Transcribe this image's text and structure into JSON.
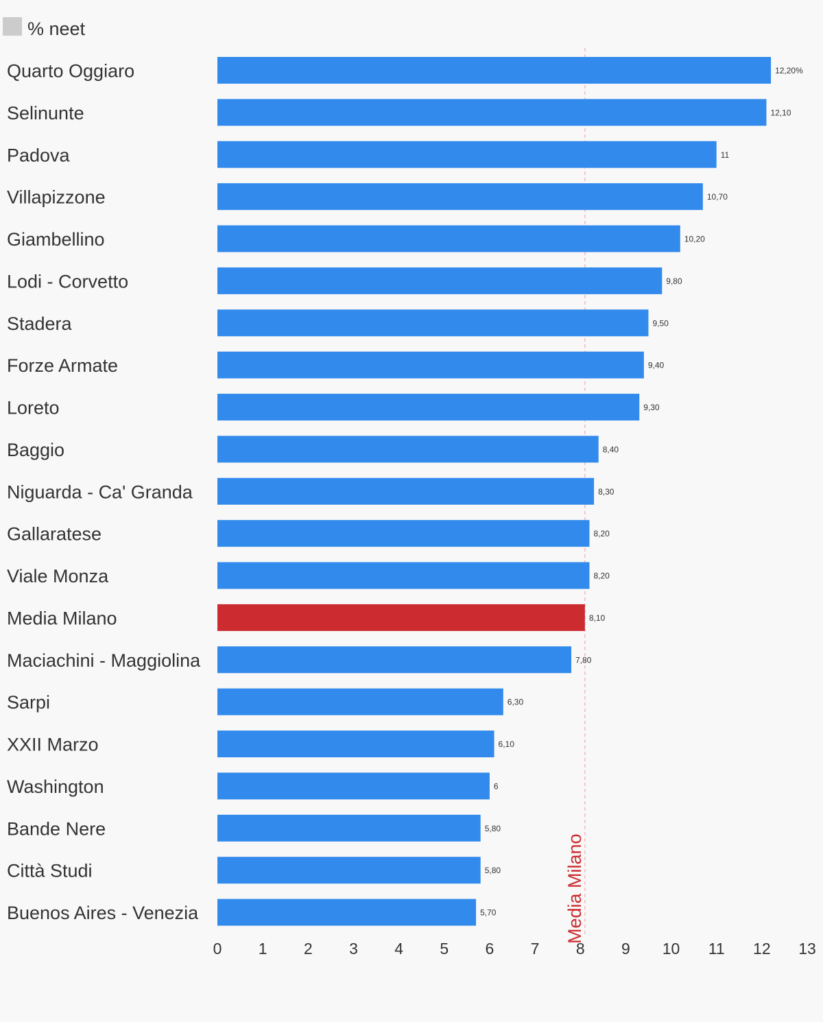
{
  "colors": {
    "bar": "#318aec",
    "highlight": "#cc2b30",
    "reference_line": "#f5b7bd",
    "legend_swatch": "#cccccc",
    "text": "#333333"
  },
  "chart_data": {
    "type": "bar",
    "orientation": "horizontal",
    "legend": {
      "label": "% neet",
      "placement": "top-left"
    },
    "categories": [
      "Quarto Oggiaro",
      "Selinunte",
      "Padova",
      "Villapizzone",
      "Giambellino",
      "Lodi - Corvetto",
      "Stadera",
      "Forze Armate",
      "Loreto",
      "Baggio",
      "Niguarda - Ca' Granda",
      "Gallaratese",
      "Viale Monza",
      "Media Milano",
      "Maciachini - Maggiolina",
      "Sarpi",
      "XXII Marzo",
      "Washington",
      "Bande Nere",
      "Città Studi",
      "Buenos Aires - Venezia"
    ],
    "values": [
      12.2,
      12.1,
      11,
      10.7,
      10.2,
      9.8,
      9.5,
      9.4,
      9.3,
      8.4,
      8.3,
      8.2,
      8.2,
      8.1,
      7.8,
      6.3,
      6.1,
      6,
      5.8,
      5.8,
      5.7
    ],
    "value_labels": [
      "12,20%",
      "12,10",
      "11",
      "10,70",
      "10,20",
      "9,80",
      "9,50",
      "9,40",
      "9,30",
      "8,40",
      "8,30",
      "8,20",
      "8,20",
      "8,10",
      "7,80",
      "6,30",
      "6,10",
      "6",
      "5,80",
      "5,80",
      "5,70"
    ],
    "highlight_category": "Media Milano",
    "reference_line": {
      "value": 8.1,
      "label": "Media Milano"
    },
    "xlim": [
      0,
      13
    ],
    "x_ticks": [
      "0",
      "1",
      "2",
      "3",
      "4",
      "5",
      "6",
      "7",
      "8",
      "9",
      "10",
      "11",
      "12",
      "13"
    ],
    "grid": false
  }
}
